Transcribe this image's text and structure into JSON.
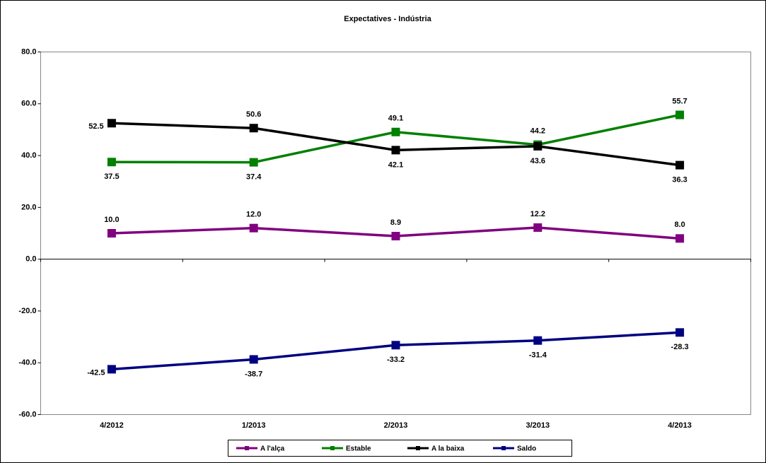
{
  "chart_data": {
    "type": "line",
    "title": "Expectatives - Indústria",
    "categories": [
      "4/2012",
      "1/2013",
      "2/2013",
      "3/2013",
      "4/2013"
    ],
    "series": [
      {
        "name": "A l'alça",
        "color": "#800080",
        "values": [
          10.0,
          12.0,
          8.9,
          12.2,
          8.0
        ],
        "value_labels": [
          "10.0",
          "12.0",
          "8.9",
          "12.2",
          "8.0"
        ]
      },
      {
        "name": "Estable",
        "color": "#008000",
        "values": [
          37.5,
          37.4,
          49.1,
          44.2,
          55.7
        ],
        "value_labels": [
          "37.5",
          "37.4",
          "49.1",
          "44.2",
          "55.7"
        ]
      },
      {
        "name": "A la baixa",
        "color": "#000000",
        "values": [
          52.5,
          50.6,
          42.1,
          43.6,
          36.3
        ],
        "value_labels": [
          "52.5",
          "50.6",
          "42.1",
          "43.6",
          "36.3"
        ]
      },
      {
        "name": "Saldo",
        "color": "#000080",
        "values": [
          -42.5,
          -38.7,
          -33.2,
          -31.4,
          -28.3
        ],
        "value_labels": [
          "-42.5",
          "-38.7",
          "-33.2",
          "-31.4",
          "-28.3"
        ]
      }
    ],
    "ylim": [
      -60,
      80
    ],
    "yticks": [
      {
        "value": -60,
        "label": "-60.0"
      },
      {
        "value": -40,
        "label": "-40.0"
      },
      {
        "value": -20,
        "label": "-20.0"
      },
      {
        "value": 0,
        "label": "0.0"
      },
      {
        "value": 20,
        "label": "20.0"
      },
      {
        "value": 40,
        "label": "40.0"
      },
      {
        "value": 60,
        "label": "60.0"
      },
      {
        "value": 80,
        "label": "80.0"
      }
    ],
    "grid": false,
    "legend": "bottom"
  }
}
